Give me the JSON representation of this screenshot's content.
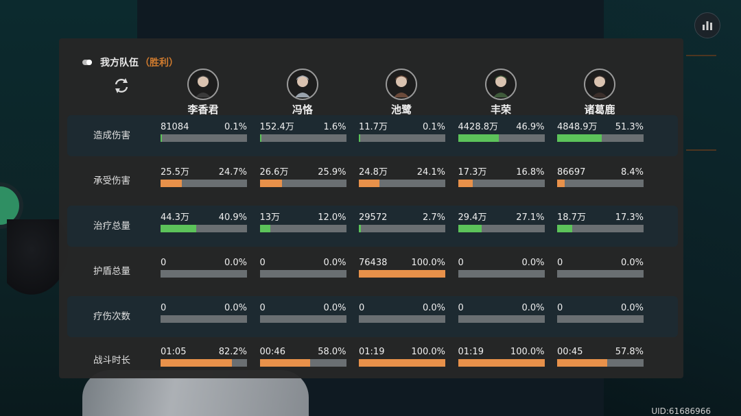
{
  "team": {
    "name": "我方队伍",
    "result": "（胜利）"
  },
  "characters": [
    {
      "name": "李香君",
      "avatar_icon": "character-avatar"
    },
    {
      "name": "冯恪",
      "avatar_icon": "character-avatar"
    },
    {
      "name": "池鹭",
      "avatar_icon": "character-avatar"
    },
    {
      "name": "丰荣",
      "avatar_icon": "character-avatar"
    },
    {
      "name": "诸葛鹿",
      "avatar_icon": "character-avatar"
    }
  ],
  "rows": [
    {
      "label": "造成伤害",
      "bar_color": "green",
      "cells": [
        {
          "value": "81084",
          "percent": "0.1%",
          "ratio": 0.001
        },
        {
          "value": "152.4万",
          "percent": "1.6%",
          "ratio": 0.016
        },
        {
          "value": "11.7万",
          "percent": "0.1%",
          "ratio": 0.001
        },
        {
          "value": "4428.8万",
          "percent": "46.9%",
          "ratio": 0.469
        },
        {
          "value": "4848.9万",
          "percent": "51.3%",
          "ratio": 0.513
        }
      ]
    },
    {
      "label": "承受伤害",
      "bar_color": "orange",
      "cells": [
        {
          "value": "25.5万",
          "percent": "24.7%",
          "ratio": 0.247
        },
        {
          "value": "26.6万",
          "percent": "25.9%",
          "ratio": 0.259
        },
        {
          "value": "24.8万",
          "percent": "24.1%",
          "ratio": 0.241
        },
        {
          "value": "17.3万",
          "percent": "16.8%",
          "ratio": 0.168
        },
        {
          "value": "86697",
          "percent": "8.4%",
          "ratio": 0.084
        }
      ]
    },
    {
      "label": "治疗总量",
      "bar_color": "green",
      "cells": [
        {
          "value": "44.3万",
          "percent": "40.9%",
          "ratio": 0.409
        },
        {
          "value": "13万",
          "percent": "12.0%",
          "ratio": 0.12
        },
        {
          "value": "29572",
          "percent": "2.7%",
          "ratio": 0.027
        },
        {
          "value": "29.4万",
          "percent": "27.1%",
          "ratio": 0.271
        },
        {
          "value": "18.7万",
          "percent": "17.3%",
          "ratio": 0.173
        }
      ]
    },
    {
      "label": "护盾总量",
      "bar_color": "orange",
      "cells": [
        {
          "value": "0",
          "percent": "0.0%",
          "ratio": 0
        },
        {
          "value": "0",
          "percent": "0.0%",
          "ratio": 0
        },
        {
          "value": "76438",
          "percent": "100.0%",
          "ratio": 1
        },
        {
          "value": "0",
          "percent": "0.0%",
          "ratio": 0
        },
        {
          "value": "0",
          "percent": "0.0%",
          "ratio": 0
        }
      ]
    },
    {
      "label": "疗伤次数",
      "bar_color": "green",
      "cells": [
        {
          "value": "0",
          "percent": "0.0%",
          "ratio": 0
        },
        {
          "value": "0",
          "percent": "0.0%",
          "ratio": 0
        },
        {
          "value": "0",
          "percent": "0.0%",
          "ratio": 0
        },
        {
          "value": "0",
          "percent": "0.0%",
          "ratio": 0
        },
        {
          "value": "0",
          "percent": "0.0%",
          "ratio": 0
        }
      ]
    },
    {
      "label": "战斗时长",
      "bar_color": "orange",
      "cells": [
        {
          "value": "01:05",
          "percent": "82.2%",
          "ratio": 0.822
        },
        {
          "value": "00:46",
          "percent": "58.0%",
          "ratio": 0.58
        },
        {
          "value": "01:19",
          "percent": "100.0%",
          "ratio": 1
        },
        {
          "value": "01:19",
          "percent": "100.0%",
          "ratio": 1
        },
        {
          "value": "00:45",
          "percent": "57.8%",
          "ratio": 0.578
        }
      ]
    }
  ],
  "uid": "UID:61686966",
  "colors": {
    "green": "#5cc35a",
    "orange": "#e8914a",
    "accent": "#d07b2e"
  }
}
